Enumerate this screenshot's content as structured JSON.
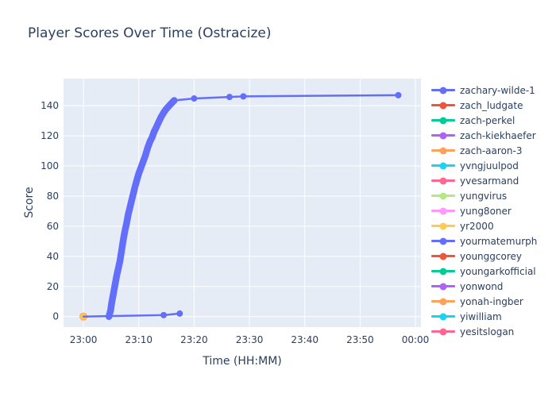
{
  "title": "Player Scores Over Time (Ostracize)",
  "chart_data": {
    "type": "line",
    "title": "Player Scores Over Time (Ostracize)",
    "xlabel": "Time (HH:MM)",
    "ylabel": "Score",
    "x_ticks": [
      {
        "label": "23:00",
        "minutes": 0
      },
      {
        "label": "23:10",
        "minutes": 10
      },
      {
        "label": "23:20",
        "minutes": 20
      },
      {
        "label": "23:30",
        "minutes": 30
      },
      {
        "label": "23:40",
        "minutes": 40
      },
      {
        "label": "23:50",
        "minutes": 50
      },
      {
        "label": "00:00",
        "minutes": 60
      }
    ],
    "y_ticks": [
      0,
      20,
      40,
      60,
      80,
      100,
      120,
      140
    ],
    "x_range_minutes": [
      -3.6,
      61.0
    ],
    "y_range": [
      -7,
      158
    ],
    "grid": true,
    "legend_position": "right",
    "plot_bg_color": "#E5ECF6",
    "grid_color": "#FFFFFF",
    "text_color": "#2a3f5f",
    "series": [
      {
        "name": "zachary-wilde-1",
        "color": "#636EFA",
        "points": [
          [
            4.6,
            0
          ],
          [
            4.9,
            4
          ],
          [
            5.1,
            9
          ],
          [
            5.4,
            15
          ],
          [
            5.7,
            21
          ],
          [
            6.0,
            27
          ],
          [
            6.3,
            32
          ],
          [
            6.6,
            37
          ],
          [
            6.9,
            44
          ],
          [
            7.2,
            51
          ],
          [
            7.5,
            57
          ],
          [
            7.8,
            62
          ],
          [
            8.1,
            68
          ],
          [
            8.5,
            74
          ],
          [
            8.9,
            80
          ],
          [
            9.3,
            86
          ],
          [
            9.6,
            90
          ],
          [
            10.0,
            95
          ],
          [
            10.4,
            99
          ],
          [
            10.8,
            103
          ],
          [
            11.2,
            107
          ],
          [
            11.6,
            112
          ],
          [
            12.0,
            116
          ],
          [
            12.4,
            119
          ],
          [
            12.8,
            123
          ],
          [
            13.2,
            126
          ],
          [
            13.7,
            130
          ],
          [
            14.1,
            133
          ],
          [
            14.6,
            136
          ],
          [
            15.0,
            138
          ],
          [
            15.5,
            140
          ],
          [
            16.0,
            142
          ],
          [
            16.4,
            143.5
          ],
          [
            20.0,
            144.8
          ],
          [
            26.4,
            145.8
          ],
          [
            28.9,
            146.2
          ],
          [
            56.9,
            147
          ]
        ],
        "dense_markers_until_minute": 16.4,
        "marker_minutes": [
          16.4,
          20.0,
          26.4,
          28.9,
          56.9
        ]
      },
      {
        "name": "zach_ludgate",
        "color": "#EF553B",
        "points": []
      },
      {
        "name": "zach-perkel",
        "color": "#00CC96",
        "points": []
      },
      {
        "name": "zach-kiekhaefer",
        "color": "#AB63FA",
        "points": []
      },
      {
        "name": "zach-aaron-3",
        "color": "#FFA15A",
        "points": [
          [
            0,
            0
          ]
        ],
        "marker_minutes": [
          0
        ]
      },
      {
        "name": "yvngjuulpod",
        "color": "#19D3F3",
        "points": []
      },
      {
        "name": "yvesarmand",
        "color": "#FF6692",
        "points": []
      },
      {
        "name": "yungvirus",
        "color": "#B6E880",
        "points": []
      },
      {
        "name": "yung8oner",
        "color": "#FF97FF",
        "points": []
      },
      {
        "name": "yr2000",
        "color": "#FECB52",
        "points": [
          [
            0,
            0
          ]
        ],
        "marker_minutes": [
          0
        ]
      },
      {
        "name": "yourmatemurph",
        "color": "#636EFA",
        "points": [
          [
            0,
            0
          ],
          [
            14.5,
            1
          ],
          [
            17.4,
            2
          ]
        ],
        "marker_minutes": [
          14.5,
          17.4
        ]
      },
      {
        "name": "younggcorey",
        "color": "#EF553B",
        "points": []
      },
      {
        "name": "youngarkofficial",
        "color": "#00CC96",
        "points": []
      },
      {
        "name": "yonwond",
        "color": "#AB63FA",
        "points": []
      },
      {
        "name": "yonah-ingber",
        "color": "#FFA15A",
        "points": []
      },
      {
        "name": "yiwilliam",
        "color": "#19D3F3",
        "points": []
      },
      {
        "name": "yesitslogan",
        "color": "#FF6692",
        "points": []
      }
    ]
  }
}
